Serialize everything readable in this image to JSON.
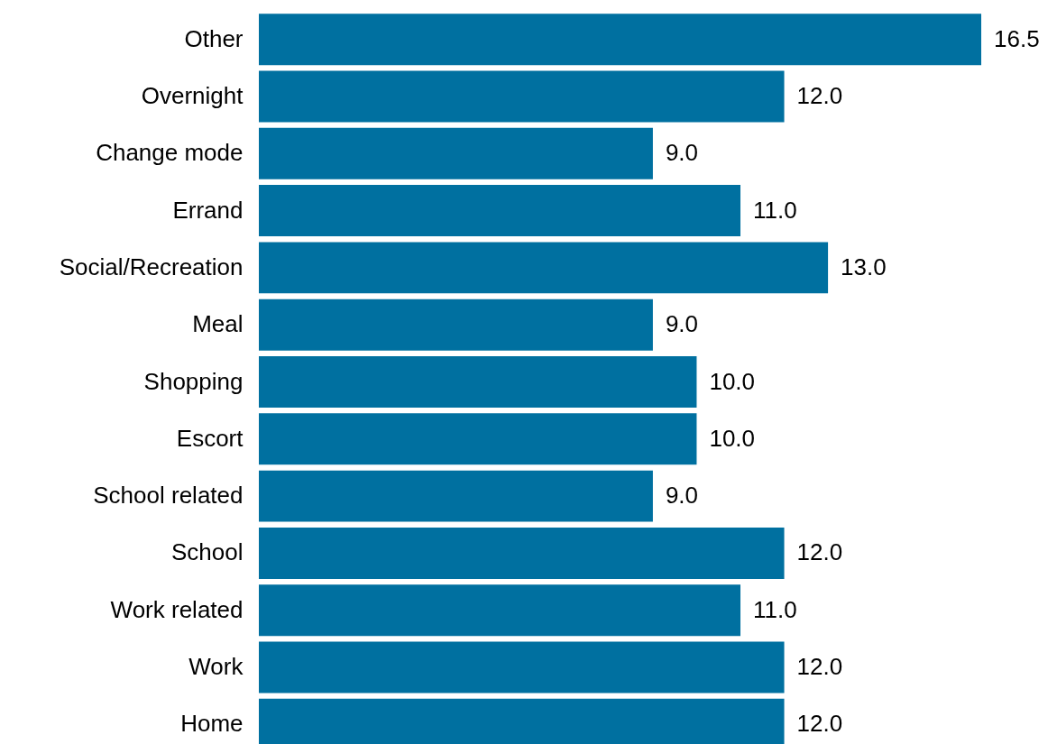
{
  "chart_data": {
    "type": "bar",
    "orientation": "horizontal",
    "categories": [
      "Other",
      "Overnight",
      "Change mode",
      "Errand",
      "Social/Recreation",
      "Meal",
      "Shopping",
      "Escort",
      "School related",
      "School",
      "Work related",
      "Work",
      "Home"
    ],
    "values": [
      16.5,
      12.0,
      9.0,
      11.0,
      13.0,
      9.0,
      10.0,
      10.0,
      9.0,
      12.0,
      11.0,
      12.0,
      12.0
    ],
    "value_labels": [
      "16.5",
      "12.0",
      "9.0",
      "11.0",
      "13.0",
      "9.0",
      "10.0",
      "10.0",
      "9.0",
      "12.0",
      "11.0",
      "12.0",
      "12.0"
    ],
    "color": "#0070a0"
  }
}
